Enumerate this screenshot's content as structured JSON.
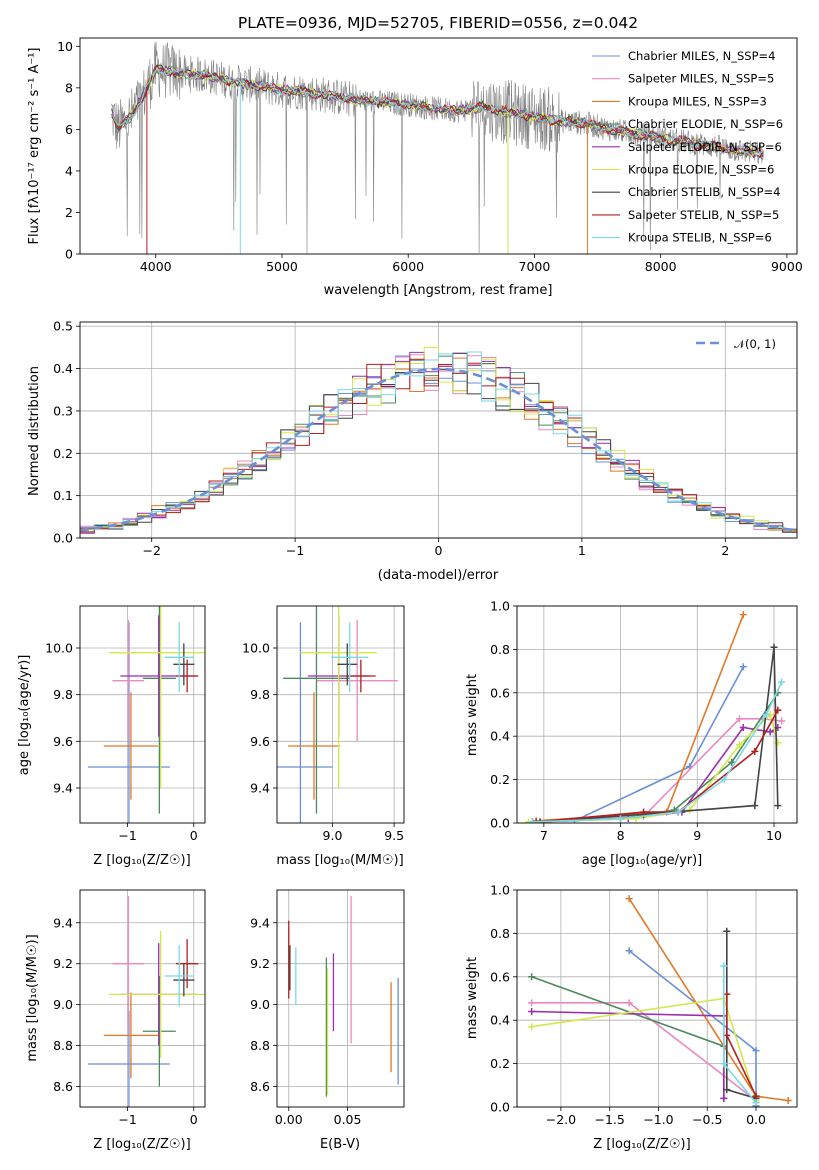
{
  "figure_title": "PLATE=0936, MJD=52705, FIBERID=0556, z=0.042",
  "series_colors": [
    "#6b8fd8",
    "#ec88c0",
    "#e07a2a",
    "#4e8a5e",
    "#9b2fae",
    "#d4e84a",
    "#444444",
    "#b21e1e",
    "#7ad9e6"
  ],
  "chart_data": [
    {
      "type": "line",
      "xlabel": "wavelength [Angstrom, rest frame]",
      "ylabel": "Flux [fλ10⁻¹⁷ erg cm⁻² s⁻¹ A⁻¹]",
      "xlim": [
        3400,
        9080
      ],
      "ylim": [
        0,
        10.4
      ],
      "xticks": [
        "4000",
        "5000",
        "6000",
        "7000",
        "8000",
        "9000"
      ],
      "yticks": [
        "0",
        "2",
        "4",
        "6",
        "8",
        "10"
      ],
      "grid": false,
      "legend": "top-right",
      "legend_entries": [
        "Chabrier MILES, N_SSP=4",
        "Salpeter MILES, N_SSP=5",
        "Kroupa MILES, N_SSP=3",
        "Chabrier ELODIE, N_SSP=6",
        "Salpeter ELODIE, N_SSP=6",
        "Kroupa ELODIE, N_SSP=6",
        "Chabrier STELIB, N_SSP=4",
        "Salpeter STELIB, N_SSP=5",
        "Kroupa STELIB, N_SSP=6"
      ],
      "data_trend": {
        "x": [
          3650,
          3700,
          3800,
          3900,
          4000,
          4200,
          4400,
          4600,
          4800,
          5000,
          5200,
          5400,
          5600,
          5800,
          6000,
          6200,
          6400,
          6600,
          6800,
          7000,
          7200,
          7400,
          7600,
          7800,
          8000,
          8200,
          8400,
          8600,
          8820
        ],
        "y": [
          6.8,
          6.0,
          6.6,
          7.6,
          8.9,
          8.7,
          8.6,
          8.3,
          8.1,
          7.9,
          7.8,
          7.6,
          7.4,
          7.3,
          7.2,
          7.0,
          6.9,
          7.1,
          6.8,
          6.6,
          6.4,
          6.3,
          6.0,
          5.8,
          5.6,
          5.4,
          5.2,
          5.0,
          4.8
        ]
      }
    },
    {
      "type": "bar",
      "xlabel": "(data-model)/error",
      "ylabel": "Normed distribution",
      "xlim": [
        -2.5,
        2.5
      ],
      "ylim": [
        0,
        0.51
      ],
      "xticks": [
        "−2",
        "−1",
        "0",
        "1",
        "2"
      ],
      "yticks": [
        "0.0",
        "0.1",
        "0.2",
        "0.3",
        "0.4",
        "0.5"
      ],
      "grid": true,
      "legend": "top-right",
      "legend_entries": [
        "𝒩(0, 1)"
      ],
      "bin_width": 0.1,
      "bin_start": -2.5,
      "reference_curve": "standard normal"
    },
    {
      "type": "scatter",
      "xlabel": "Z [log₁₀(Z/Z☉)]",
      "ylabel": "age  [log₁₀(age/yr)]",
      "xlim": [
        -1.72,
        0.17
      ],
      "ylim": [
        9.25,
        10.18
      ],
      "xticks": [
        "−1",
        "0"
      ],
      "yticks": [
        "9.4",
        "9.6",
        "9.8",
        "10.0"
      ],
      "grid": true,
      "points": [
        {
          "x": -0.98,
          "xerr": 0.62,
          "y": 9.49,
          "yerr": 0.62
        },
        {
          "x": -0.99,
          "xerr": 0.24,
          "y": 9.86,
          "yerr": 0.26
        },
        {
          "x": -0.95,
          "xerr": 0.41,
          "y": 9.58,
          "yerr": 0.23
        },
        {
          "x": -0.52,
          "xerr": 0.25,
          "y": 9.87,
          "yerr": 0.58
        },
        {
          "x": -0.53,
          "xerr": 0.58,
          "y": 9.88,
          "yerr": 0.26
        },
        {
          "x": -0.5,
          "xerr": 0.78,
          "y": 9.98,
          "yerr": 0.58
        },
        {
          "x": -0.15,
          "xerr": 0.16,
          "y": 9.93,
          "yerr": 0.09
        },
        {
          "x": -0.1,
          "xerr": 0.17,
          "y": 9.88,
          "yerr": 0.07
        },
        {
          "x": -0.22,
          "xerr": 0.22,
          "y": 9.96,
          "yerr": 0.15
        }
      ]
    },
    {
      "type": "scatter",
      "xlabel": "mass [log₁₀(M/M☉)]",
      "ylabel": "",
      "xlim": [
        8.55,
        9.58
      ],
      "ylim": [
        9.25,
        10.18
      ],
      "xticks": [
        "9.0",
        "9.5"
      ],
      "yticks": [
        "9.4",
        "9.6",
        "9.8",
        "10.0"
      ],
      "grid": true,
      "points": [
        {
          "x": 8.74,
          "xerr": 0.26,
          "y": 9.49,
          "yerr": 0.62
        },
        {
          "x": 9.2,
          "xerr": 0.33,
          "y": 9.86,
          "yerr": 0.26
        },
        {
          "x": 8.85,
          "xerr": 0.21,
          "y": 9.58,
          "yerr": 0.23
        },
        {
          "x": 8.87,
          "xerr": 0.27,
          "y": 9.87,
          "yerr": 0.58
        },
        {
          "x": 9.05,
          "xerr": 0.25,
          "y": 9.88,
          "yerr": 0.26
        },
        {
          "x": 9.05,
          "xerr": 0.31,
          "y": 9.98,
          "yerr": 0.58
        },
        {
          "x": 9.12,
          "xerr": 0.08,
          "y": 9.93,
          "yerr": 0.09
        },
        {
          "x": 9.23,
          "xerr": 0.12,
          "y": 9.88,
          "yerr": 0.07
        },
        {
          "x": 9.14,
          "xerr": 0.15,
          "y": 9.96,
          "yerr": 0.15
        }
      ]
    },
    {
      "type": "line",
      "xlabel": "age  [log₁₀(age/yr)]",
      "ylabel": "mass weight",
      "xlim": [
        6.65,
        10.3
      ],
      "ylim": [
        0,
        1.0
      ],
      "xticks": [
        "7",
        "8",
        "9",
        "10"
      ],
      "yticks": [
        "0.0",
        "0.2",
        "0.4",
        "0.6",
        "0.8",
        "1.0"
      ],
      "grid": true,
      "series": [
        {
          "x": [
            6.85,
            7.4,
            8.9,
            9.6
          ],
          "y": [
            0.005,
            0.01,
            0.26,
            0.72
          ]
        },
        {
          "x": [
            6.95,
            8.3,
            9.55,
            9.85,
            10.1
          ],
          "y": [
            0.005,
            0.03,
            0.48,
            0.48,
            0.47
          ]
        },
        {
          "x": [
            6.9,
            8.6,
            9.6
          ],
          "y": [
            0.01,
            0.05,
            0.96
          ]
        },
        {
          "x": [
            6.85,
            8.0,
            8.7,
            9.45,
            10.05
          ],
          "y": [
            0.005,
            0.02,
            0.06,
            0.28,
            0.6
          ]
        },
        {
          "x": [
            6.85,
            8.1,
            8.8,
            9.6,
            9.95,
            10.05
          ],
          "y": [
            0.005,
            0.02,
            0.05,
            0.44,
            0.42,
            0.44
          ]
        },
        {
          "x": [
            6.8,
            8.2,
            8.9,
            9.55,
            9.95,
            10.05
          ],
          "y": [
            0.005,
            0.02,
            0.06,
            0.36,
            0.5,
            0.37
          ]
        },
        {
          "x": [
            6.95,
            8.3,
            9.75,
            10.0,
            10.05
          ],
          "y": [
            0.005,
            0.04,
            0.08,
            0.81,
            0.08
          ]
        },
        {
          "x": [
            6.9,
            8.3,
            8.75,
            9.75,
            10.05
          ],
          "y": [
            0.005,
            0.05,
            0.05,
            0.33,
            0.52
          ]
        },
        {
          "x": [
            6.85,
            8.0,
            8.75,
            9.35,
            9.9,
            10.1
          ],
          "y": [
            0.005,
            0.02,
            0.05,
            0.2,
            0.5,
            0.65
          ]
        }
      ]
    },
    {
      "type": "scatter",
      "xlabel": "Z [log₁₀(Z/Z☉)]",
      "ylabel": "mass [log₁₀(M/M☉)]",
      "xlim": [
        -1.72,
        0.17
      ],
      "ylim": [
        8.5,
        9.56
      ],
      "xticks": [
        "−1",
        "0"
      ],
      "yticks": [
        "8.6",
        "8.8",
        "9.0",
        "9.2",
        "9.4"
      ],
      "grid": true,
      "points": [
        {
          "x": -0.98,
          "xerr": 0.62,
          "y": 8.71,
          "yerr": 0.26
        },
        {
          "x": -0.99,
          "xerr": 0.24,
          "y": 9.2,
          "yerr": 0.33
        },
        {
          "x": -0.95,
          "xerr": 0.41,
          "y": 8.85,
          "yerr": 0.21
        },
        {
          "x": -0.52,
          "xerr": 0.25,
          "y": 8.87,
          "yerr": 0.27
        },
        {
          "x": -0.53,
          "xerr": 0.58,
          "y": 9.05,
          "yerr": 0.25
        },
        {
          "x": -0.5,
          "xerr": 0.78,
          "y": 9.05,
          "yerr": 0.31
        },
        {
          "x": -0.15,
          "xerr": 0.16,
          "y": 9.12,
          "yerr": 0.08
        },
        {
          "x": -0.1,
          "xerr": 0.17,
          "y": 9.2,
          "yerr": 0.12
        },
        {
          "x": -0.22,
          "xerr": 0.22,
          "y": 9.14,
          "yerr": 0.15
        }
      ]
    },
    {
      "type": "scatter",
      "xlabel": "E(B-V)",
      "ylabel": "",
      "xlim": [
        -0.01,
        0.098
      ],
      "ylim": [
        8.5,
        9.56
      ],
      "xticks": [
        "0.00",
        "0.05"
      ],
      "yticks": [
        "8.6",
        "8.8",
        "9.0",
        "9.2",
        "9.4"
      ],
      "grid": true,
      "points": [
        {
          "x": 0.093,
          "y": 8.87,
          "yerr": 0.26
        },
        {
          "x": 0.053,
          "y": 9.17,
          "yerr": 0.36
        },
        {
          "x": 0.087,
          "y": 8.89,
          "yerr": 0.22
        },
        {
          "x": 0.032,
          "y": 8.89,
          "yerr": 0.34
        },
        {
          "x": 0.038,
          "y": 9.06,
          "yerr": 0.19
        },
        {
          "x": 0.033,
          "y": 8.87,
          "yerr": 0.31
        },
        {
          "x": 0.001,
          "y": 9.18,
          "yerr": 0.11
        },
        {
          "x": 0.0,
          "y": 9.22,
          "yerr": 0.19
        },
        {
          "x": 0.006,
          "y": 9.14,
          "yerr": 0.14
        }
      ]
    },
    {
      "type": "line",
      "xlabel": "Z [log₁₀(Z/Z☉)]",
      "ylabel": "mass weight",
      "xlim": [
        -2.45,
        0.42
      ],
      "ylim": [
        0,
        1.0
      ],
      "xticks": [
        "−2.0",
        "−1.5",
        "−1.0",
        "−0.5",
        "0.0"
      ],
      "yticks": [
        "0.0",
        "0.2",
        "0.4",
        "0.6",
        "0.8",
        "1.0"
      ],
      "grid": true,
      "series": [
        {
          "x": [
            -1.3,
            0.0,
            0.0
          ],
          "y": [
            0.72,
            0.26,
            0.005
          ]
        },
        {
          "x": [
            -2.3,
            -1.3,
            0.0
          ],
          "y": [
            0.48,
            0.48,
            0.03
          ]
        },
        {
          "x": [
            -1.3,
            0.0,
            0.33
          ],
          "y": [
            0.96,
            0.05,
            0.03
          ]
        },
        {
          "x": [
            -2.3,
            -0.33,
            -0.33
          ],
          "y": [
            0.6,
            0.28,
            0.04
          ]
        },
        {
          "x": [
            -2.3,
            -0.33,
            -0.33
          ],
          "y": [
            0.44,
            0.42,
            0.04
          ]
        },
        {
          "x": [
            -2.3,
            -0.33,
            0.0
          ],
          "y": [
            0.37,
            0.5,
            0.03
          ]
        },
        {
          "x": [
            -0.3,
            -0.3,
            0.0
          ],
          "y": [
            0.81,
            0.08,
            0.04
          ]
        },
        {
          "x": [
            -0.3,
            -0.3,
            0.0
          ],
          "y": [
            0.52,
            0.33,
            0.05
          ]
        },
        {
          "x": [
            -0.33,
            -0.33,
            0.0
          ],
          "y": [
            0.65,
            0.2,
            0.02
          ]
        }
      ]
    }
  ]
}
